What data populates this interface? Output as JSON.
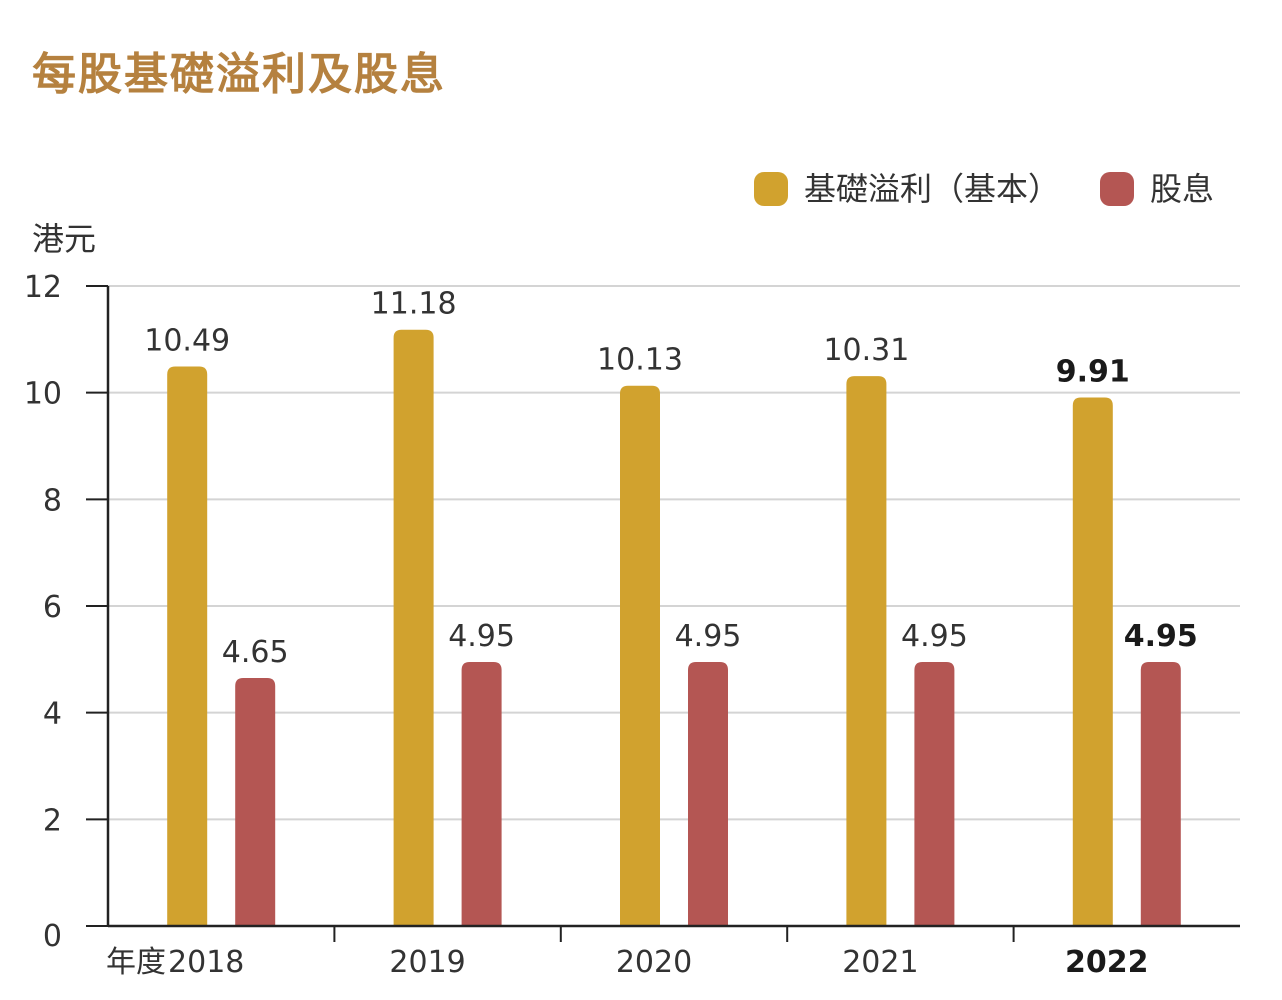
{
  "title": "每股基礎溢利及股息",
  "chart_data": {
    "type": "bar",
    "title": "每股基礎溢利及股息",
    "ylabel": "港元",
    "xlabel": "年度",
    "ylim": [
      0,
      12
    ],
    "yticks": [
      0,
      2,
      4,
      6,
      8,
      10,
      12
    ],
    "grid": true,
    "legend_position": "top-right",
    "categories": [
      "2018",
      "2019",
      "2020",
      "2021",
      "2022"
    ],
    "highlight_category": "2022",
    "series": [
      {
        "name": "基礎溢利（基本）",
        "color": "#d1a22e",
        "values": [
          10.49,
          11.18,
          10.13,
          10.31,
          9.91
        ],
        "labels": [
          "10.49",
          "11.18",
          "10.13",
          "10.31",
          "9.91"
        ]
      },
      {
        "name": "股息",
        "color": "#b45653",
        "values": [
          4.65,
          4.95,
          4.95,
          4.95,
          4.95
        ],
        "labels": [
          "4.65",
          "4.95",
          "4.95",
          "4.95",
          "4.95"
        ]
      }
    ]
  }
}
